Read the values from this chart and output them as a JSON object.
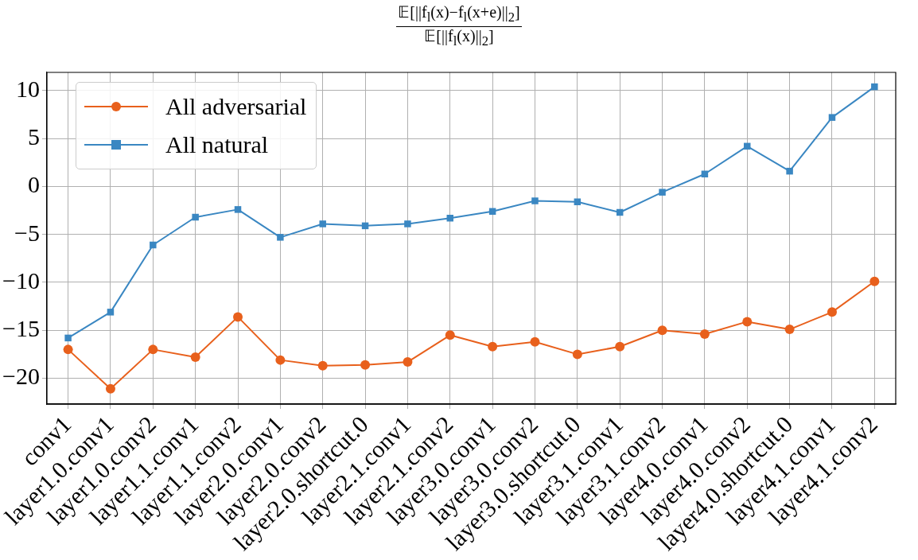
{
  "chart_data": {
    "type": "line",
    "title": "𝔼[||f$_{l}$(x)−f$_{l}$(x+e)||$_{2}$]",
    "subtitle": "𝔼[||f$_{l}$(x)||$_{2}$]",
    "categories": [
      "conv1",
      "layer1.0.conv1",
      "layer1.0.conv2",
      "layer1.1.conv1",
      "layer1.1.conv2",
      "layer2.0.conv1",
      "layer2.0.conv2",
      "layer2.0.shortcut.0",
      "layer2.1.conv1",
      "layer2.1.conv2",
      "layer3.0.conv1",
      "layer3.0.conv2",
      "layer3.0.shortcut.0",
      "layer3.1.conv1",
      "layer3.1.conv2",
      "layer4.0.conv1",
      "layer4.0.conv2",
      "layer4.0.shortcut.0",
      "layer4.1.conv1",
      "layer4.1.conv2"
    ],
    "series": [
      {
        "name": "All adversarial",
        "color": "#e8601c",
        "marker": "circle",
        "values": [
          -17.0,
          -21.1,
          -17.0,
          -17.8,
          -13.6,
          -18.1,
          -18.7,
          -18.6,
          -18.3,
          -15.5,
          -16.7,
          -16.2,
          -17.5,
          -16.7,
          -15.0,
          -15.4,
          -14.1,
          -14.9,
          -13.1,
          -9.9
        ]
      },
      {
        "name": "All natural",
        "color": "#3a87c2",
        "marker": "square",
        "values": [
          -15.8,
          -13.1,
          -6.1,
          -3.2,
          -2.4,
          -5.3,
          -3.9,
          -4.1,
          -3.9,
          -3.3,
          -2.6,
          -1.5,
          -1.6,
          -2.7,
          -0.6,
          1.3,
          4.2,
          1.6,
          7.2,
          10.4
        ]
      }
    ],
    "ylim": [
      -22.7,
      11.9
    ],
    "yticks": [
      -20,
      -15,
      -10,
      -5,
      0,
      5,
      10
    ],
    "grid": true,
    "legend": "top left",
    "line_style": "solid"
  }
}
